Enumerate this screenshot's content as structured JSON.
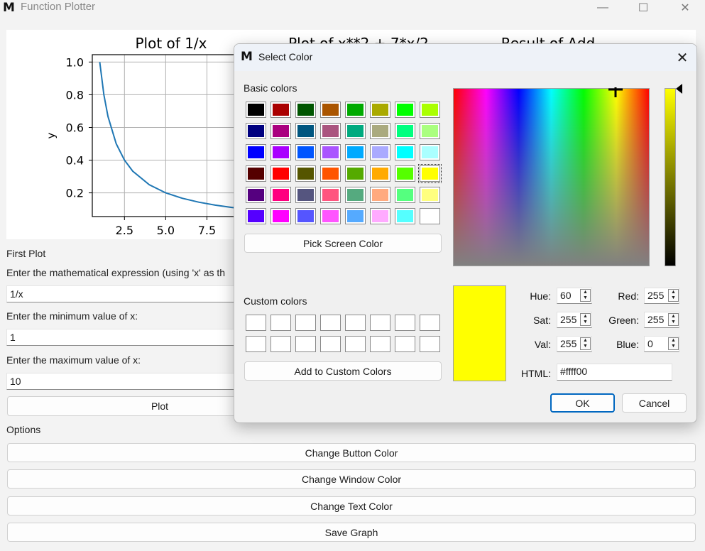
{
  "window": {
    "logo": "M",
    "title": "Function Plotter",
    "minimize": "—",
    "maximize": "☐",
    "close": "✕"
  },
  "plots": {
    "plot1": {
      "title": "Plot of 1/x",
      "ylabel": "y",
      "yticks": [
        "0.2",
        "0.4",
        "0.6",
        "0.8",
        "1.0"
      ],
      "xticks": [
        "2.5",
        "5.0",
        "7.5",
        "1"
      ]
    },
    "plot2": {
      "title": "Plot of x**2 + 7*x/2"
    },
    "plot3": {
      "title": "Result of Add"
    }
  },
  "chart_data": {
    "type": "line",
    "title": "Plot of 1/x",
    "xlabel": "",
    "ylabel": "y",
    "x": [
      1,
      1.25,
      1.5,
      2,
      2.5,
      3,
      4,
      5,
      6,
      7,
      8,
      9,
      10
    ],
    "series": [
      {
        "values": [
          1.0,
          0.8,
          0.667,
          0.5,
          0.4,
          0.333,
          0.25,
          0.2,
          0.167,
          0.143,
          0.125,
          0.111,
          0.1
        ]
      }
    ],
    "xlim": [
      0.55,
      10.45
    ],
    "ylim": [
      0.055,
      1.045
    ],
    "grid": true
  },
  "first_plot": {
    "section_label": "First Plot",
    "expr_label": "Enter the mathematical expression (using 'x' as th",
    "expr_value": "1/x",
    "min_label": "Enter the minimum value of x:",
    "min_value": "1",
    "max_label": "Enter the maximum value of x:",
    "max_value": "10",
    "plot_button": "Plot"
  },
  "options": {
    "label": "Options",
    "change_button_color": "Change Button Color",
    "change_window_color": "Change Window Color",
    "change_text_color": "Change Text Color",
    "save_graph": "Save Graph"
  },
  "dialog": {
    "logo": "M",
    "title": "Select Color",
    "close": "✕",
    "basic_colors_label": "Basic colors",
    "basic_colors": [
      [
        "#000000",
        "#aa0000",
        "#005500",
        "#aa5500",
        "#00aa00",
        "#aaaa00",
        "#00ff00",
        "#aaff00"
      ],
      [
        "#00007f",
        "#aa007f",
        "#00557f",
        "#aa557f",
        "#00aa7f",
        "#aaaa7f",
        "#00ff7f",
        "#aaff7f"
      ],
      [
        "#0000ff",
        "#aa00ff",
        "#0055ff",
        "#aa55ff",
        "#00aaff",
        "#aaaaff",
        "#00ffff",
        "#aaffff"
      ],
      [
        "#550000",
        "#ff0000",
        "#555500",
        "#ff5500",
        "#55aa00",
        "#ffaa00",
        "#55ff00",
        "#ffff00"
      ],
      [
        "#55007f",
        "#ff007f",
        "#55557f",
        "#ff557f",
        "#55aa7f",
        "#ffaa7f",
        "#55ff7f",
        "#ffff7f"
      ],
      [
        "#5500ff",
        "#ff00ff",
        "#5555ff",
        "#ff55ff",
        "#55aaff",
        "#ffaaff",
        "#55ffff",
        "#ffffff"
      ]
    ],
    "pick_screen_color": "Pick Screen Color",
    "custom_colors_label": "Custom colors",
    "add_to_custom": "Add to Custom Colors",
    "current_color": "#ffff00",
    "hue_label": "Hue:",
    "hue_value": "60",
    "sat_label": "Sat:",
    "sat_value": "255",
    "val_label": "Val:",
    "val_value": "255",
    "red_label": "Red:",
    "red_value": "255",
    "green_label": "Green:",
    "green_value": "255",
    "blue_label": "Blue:",
    "blue_value": "0",
    "html_label": "HTML:",
    "html_value": "#ffff00",
    "ok": "OK",
    "cancel": "Cancel"
  }
}
